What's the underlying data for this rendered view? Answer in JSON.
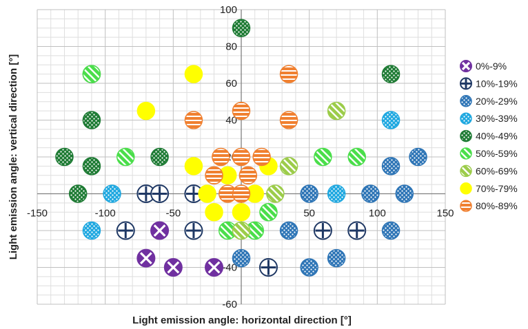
{
  "chart_data": {
    "type": "scatter",
    "xlabel": "Light emission angle: horizontal direction [°]",
    "ylabel": "Light emission angle: vertical direction [°]",
    "xlim": [
      -150,
      150
    ],
    "ylim": [
      -60,
      100
    ],
    "x_ticks": [
      -150,
      -100,
      -50,
      0,
      50,
      100,
      150
    ],
    "y_ticks": [
      -60,
      -40,
      -20,
      0,
      20,
      40,
      60,
      80,
      100
    ],
    "grid": true,
    "legend_position": "right",
    "series": [
      {
        "name": "0%-9%",
        "color": "#7030a0",
        "pattern": "cross-x",
        "points": [
          [
            -60,
            -20
          ],
          [
            -70,
            -35
          ],
          [
            -50,
            -40
          ],
          [
            -20,
            -40
          ]
        ]
      },
      {
        "name": "10%-19%",
        "color": "#1f3864",
        "pattern": "cross-plus",
        "points": [
          [
            -70,
            0
          ],
          [
            -60,
            0
          ],
          [
            -35,
            0
          ],
          [
            -85,
            -20
          ],
          [
            -35,
            -20
          ],
          [
            20,
            -40
          ],
          [
            60,
            -20
          ],
          [
            85,
            -20
          ]
        ]
      },
      {
        "name": "20%-29%",
        "color": "#2e75b6",
        "pattern": "dots",
        "points": [
          [
            50,
            0
          ],
          [
            95,
            0
          ],
          [
            120,
            0
          ],
          [
            110,
            15
          ],
          [
            130,
            20
          ],
          [
            35,
            -20
          ],
          [
            110,
            -20
          ],
          [
            0,
            -35
          ],
          [
            70,
            -35
          ],
          [
            50,
            -40
          ]
        ]
      },
      {
        "name": "30%-39%",
        "color": "#1fa8e0",
        "pattern": "dots",
        "points": [
          [
            -95,
            0
          ],
          [
            70,
            0
          ],
          [
            110,
            40
          ],
          [
            -110,
            -20
          ]
        ]
      },
      {
        "name": "40%-49%",
        "color": "#1e7b34",
        "pattern": "dots",
        "points": [
          [
            0,
            90
          ],
          [
            -110,
            65
          ],
          [
            110,
            65
          ],
          [
            -110,
            40
          ],
          [
            -130,
            20
          ],
          [
            -110,
            15
          ],
          [
            -60,
            20
          ],
          [
            -120,
            0
          ]
        ]
      },
      {
        "name": "50%-59%",
        "color": "#4ade4a",
        "pattern": "stripes",
        "points": [
          [
            -110,
            65
          ],
          [
            -85,
            20
          ],
          [
            60,
            20
          ],
          [
            85,
            20
          ],
          [
            20,
            -10
          ],
          [
            10,
            -20
          ],
          [
            -10,
            -20
          ]
        ]
      },
      {
        "name": "60%-69%",
        "color": "#9ccc4a",
        "pattern": "stripes",
        "points": [
          [
            70,
            45
          ],
          [
            35,
            15
          ],
          [
            25,
            0
          ],
          [
            0,
            -20
          ]
        ]
      },
      {
        "name": "70%-79%",
        "color": "#ffff00",
        "pattern": "solid",
        "points": [
          [
            -35,
            65
          ],
          [
            -70,
            45
          ],
          [
            -35,
            15
          ],
          [
            20,
            15
          ],
          [
            -10,
            10
          ],
          [
            -25,
            0
          ],
          [
            10,
            0
          ],
          [
            -20,
            -10
          ],
          [
            0,
            -10
          ]
        ]
      },
      {
        "name": "80%-89%",
        "color": "#f08030",
        "pattern": "hstripes",
        "points": [
          [
            35,
            65
          ],
          [
            0,
            45
          ],
          [
            -35,
            40
          ],
          [
            35,
            40
          ],
          [
            -15,
            20
          ],
          [
            0,
            20
          ],
          [
            15,
            20
          ],
          [
            -20,
            10
          ],
          [
            5,
            10
          ],
          [
            -10,
            0
          ],
          [
            0,
            0
          ]
        ]
      }
    ]
  }
}
